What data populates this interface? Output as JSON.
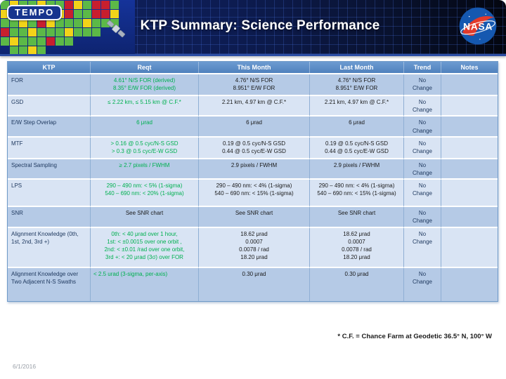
{
  "banner": {
    "title": "KTP Summary: Science Performance",
    "tempo_logo_text": "TEMPO",
    "nasa_logo_text": "NASA"
  },
  "colors": {
    "header_bg": "#4F81BD",
    "row_band_medium": "#B5CAE6",
    "row_band_light": "#D9E4F4",
    "requirement_green": "#00B050",
    "banner_navy": "#0d1c52"
  },
  "table": {
    "columns": [
      "KTP",
      "Reqt",
      "This Month",
      "Last Month",
      "Trend",
      "Notes"
    ],
    "rows": [
      {
        "ktp": "FOR",
        "reqt": [
          "4.61° N/S FOR (derived)",
          "8.35° E/W FOR (derived)"
        ],
        "this_month": [
          "4.76° N/S FOR",
          "8.951° E/W FOR"
        ],
        "last_month": [
          "4.76° N/S FOR",
          "8.951° E/W FOR"
        ],
        "trend": "No Change",
        "notes": ""
      },
      {
        "ktp": "GSD",
        "reqt": [
          "≤ 2.22 km, ≤ 5.15 km @ C.F.*"
        ],
        "this_month": [
          "2.21 km, 4.97 km @ C.F.*"
        ],
        "last_month": [
          "2.21 km, 4.97 km @ C.F.*"
        ],
        "trend": "No Change",
        "notes": ""
      },
      {
        "ktp": "E/W Step Overlap",
        "reqt": [
          "6 μrad"
        ],
        "this_month": [
          "6 μrad"
        ],
        "last_month": [
          "6 μrad"
        ],
        "trend": "No Change",
        "notes": ""
      },
      {
        "ktp": "MTF",
        "reqt": [
          "> 0.16 @ 0.5 cyc/N-S GSD",
          "> 0.3 @ 0.5 cyc/E-W GSD"
        ],
        "this_month": [
          "0.19 @ 0.5 cyc/N-S GSD",
          "0.44 @ 0.5 cyc/E-W GSD"
        ],
        "last_month": [
          "0.19 @ 0.5 cyc/N-S GSD",
          "0.44 @ 0.5 cyc/E-W GSD"
        ],
        "trend": "No Change",
        "notes": ""
      },
      {
        "ktp": "Spectral Sampling",
        "reqt": [
          "≥ 2.7 pixels / FWHM"
        ],
        "this_month": [
          "2.9 pixels / FWHM"
        ],
        "last_month": [
          "2.9 pixels / FWHM"
        ],
        "trend": "No Change",
        "notes": ""
      },
      {
        "ktp": "LPS",
        "reqt": [
          "290 – 490 nm: < 5% (1-sigma)",
          "540 – 690 nm: < 20% (1-sigma)"
        ],
        "this_month": [
          "290 – 490 nm: < 4% (1-sigma)",
          "540 – 690 nm: < 15% (1-sigma)"
        ],
        "last_month": [
          "290 – 490 nm: < 4% (1-sigma)",
          "540 – 690 nm: < 15% (1-sigma)"
        ],
        "trend": "No Change",
        "notes": ""
      },
      {
        "ktp": "SNR",
        "reqt": [
          "See SNR chart"
        ],
        "this_month": [
          "See SNR chart"
        ],
        "last_month": [
          "See SNR chart"
        ],
        "trend": "No Change",
        "notes": ""
      },
      {
        "ktp": "Alignment Knowledge (0th, 1st, 2nd, 3rd +)",
        "reqt": [
          "0th: < 40 μrad over 1 hour,",
          "1st: < ±0.0015 over one orbit ,",
          "2nd: < ±0.01 /rad over one orbit,",
          "3rd +: < 20 μrad (3σ) over FOR"
        ],
        "this_month": [
          "18.62 μrad",
          "0.0007",
          "0.0078 / rad",
          "18.20 μrad"
        ],
        "last_month": [
          "18.62 μrad",
          "0.0007",
          "0.0078 / rad",
          "18.20 μrad"
        ],
        "trend": "No Change",
        "notes": ""
      },
      {
        "ktp": "Alignment Knowledge over Two Adjacent N-S Swaths",
        "reqt": [
          "< 2.5 urad (3-sigma, per-axis)"
        ],
        "this_month": [
          "0.30 μrad"
        ],
        "last_month": [
          "0.30 μrad"
        ],
        "trend": "No Change",
        "notes": ""
      }
    ]
  },
  "footer": {
    "footnote": "* C.F. = Chance Farm at Geodetic 36.5° N, 100° W",
    "date": "6/1/2016"
  }
}
